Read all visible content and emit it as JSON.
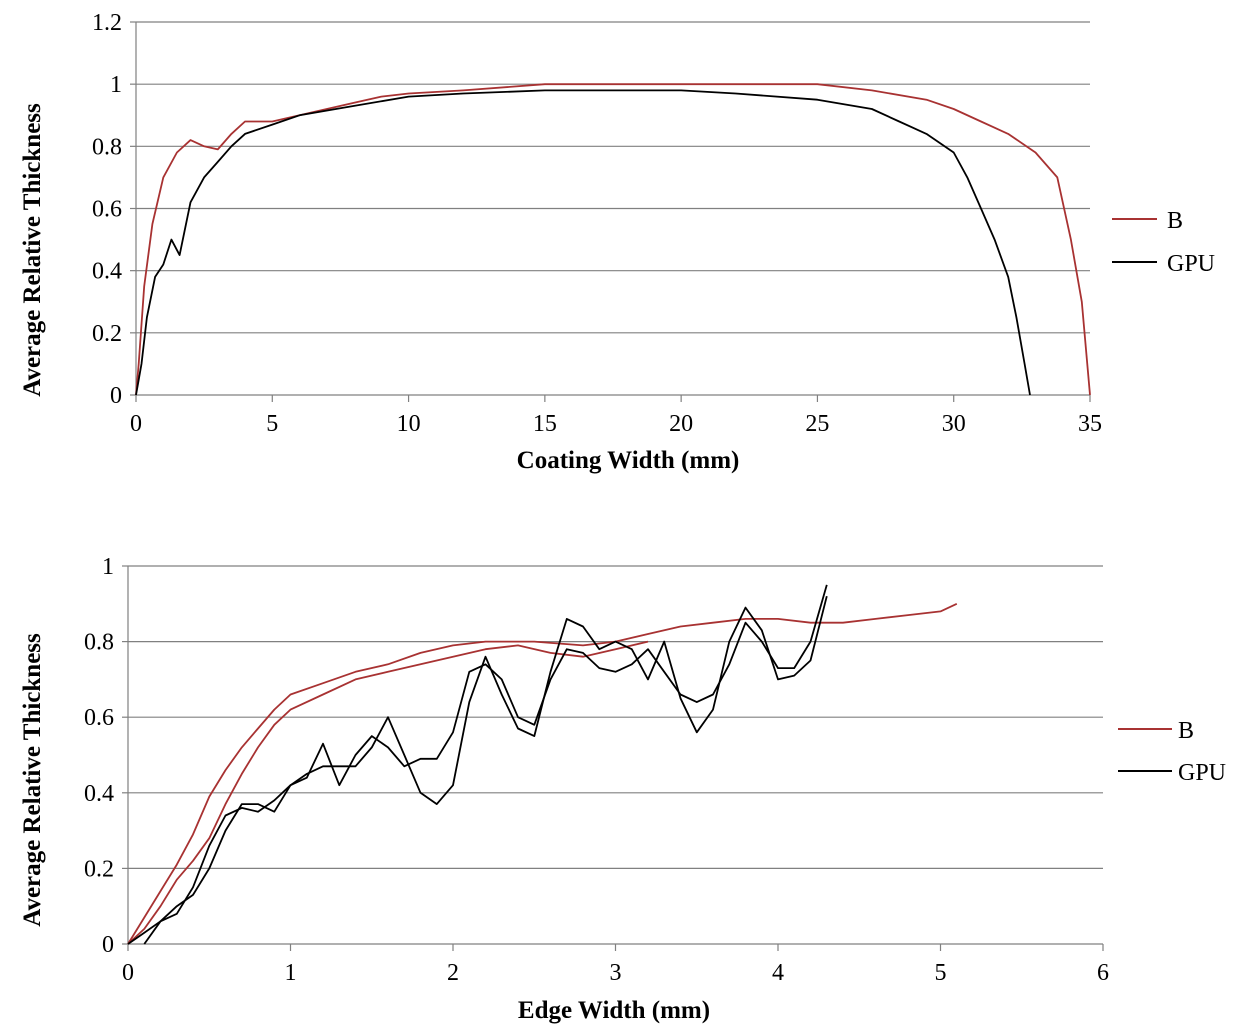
{
  "chart_data": [
    {
      "type": "line",
      "xlabel": "Coating Width (mm)",
      "ylabel": "Average Relative Thickness",
      "xlim": [
        0,
        35
      ],
      "ylim": [
        0,
        1.2
      ],
      "x_ticks": [
        "0",
        "5",
        "10",
        "15",
        "20",
        "25",
        "30",
        "35"
      ],
      "y_ticks": [
        "0",
        "0.2",
        "0.4",
        "0.6",
        "0.8",
        "1",
        "1.2"
      ],
      "grid": "horizontal",
      "legend_position": "right",
      "series": [
        {
          "name": "B",
          "color": "#a83232",
          "points": [
            [
              0,
              0
            ],
            [
              0.1,
              0.1
            ],
            [
              0.3,
              0.35
            ],
            [
              0.6,
              0.55
            ],
            [
              1.0,
              0.7
            ],
            [
              1.5,
              0.78
            ],
            [
              2.0,
              0.82
            ],
            [
              2.5,
              0.8
            ],
            [
              3.0,
              0.79
            ],
            [
              3.5,
              0.84
            ],
            [
              4.0,
              0.88
            ],
            [
              5,
              0.88
            ],
            [
              6,
              0.9
            ],
            [
              7,
              0.92
            ],
            [
              8,
              0.94
            ],
            [
              9,
              0.96
            ],
            [
              10,
              0.97
            ],
            [
              12,
              0.98
            ],
            [
              15,
              1.0
            ],
            [
              18,
              1.0
            ],
            [
              20,
              1.0
            ],
            [
              22,
              1.0
            ],
            [
              25,
              1.0
            ],
            [
              27,
              0.98
            ],
            [
              29,
              0.95
            ],
            [
              30,
              0.92
            ],
            [
              31,
              0.88
            ],
            [
              32,
              0.84
            ],
            [
              33,
              0.78
            ],
            [
              33.8,
              0.7
            ],
            [
              34.3,
              0.5
            ],
            [
              34.7,
              0.3
            ],
            [
              35,
              0.0
            ]
          ]
        },
        {
          "name": "GPU",
          "color": "#000000",
          "points": [
            [
              0,
              0
            ],
            [
              0.2,
              0.1
            ],
            [
              0.4,
              0.25
            ],
            [
              0.7,
              0.38
            ],
            [
              1.0,
              0.42
            ],
            [
              1.3,
              0.5
            ],
            [
              1.6,
              0.45
            ],
            [
              2.0,
              0.62
            ],
            [
              2.5,
              0.7
            ],
            [
              3.0,
              0.75
            ],
            [
              3.5,
              0.8
            ],
            [
              4,
              0.84
            ],
            [
              5,
              0.87
            ],
            [
              6,
              0.9
            ],
            [
              8,
              0.93
            ],
            [
              10,
              0.96
            ],
            [
              12,
              0.97
            ],
            [
              15,
              0.98
            ],
            [
              18,
              0.98
            ],
            [
              20,
              0.98
            ],
            [
              22,
              0.97
            ],
            [
              25,
              0.95
            ],
            [
              27,
              0.92
            ],
            [
              28,
              0.88
            ],
            [
              29,
              0.84
            ],
            [
              30,
              0.78
            ],
            [
              30.5,
              0.7
            ],
            [
              31,
              0.6
            ],
            [
              31.5,
              0.5
            ],
            [
              32,
              0.38
            ],
            [
              32.3,
              0.25
            ],
            [
              32.6,
              0.1
            ],
            [
              32.8,
              0.0
            ]
          ]
        }
      ]
    },
    {
      "type": "line",
      "xlabel": "Edge Width (mm)",
      "ylabel": "Average Relative Thickness",
      "xlim": [
        0,
        6
      ],
      "ylim": [
        0,
        1
      ],
      "x_ticks": [
        "0",
        "1",
        "2",
        "3",
        "4",
        "5",
        "6"
      ],
      "y_ticks": [
        "0",
        "0.2",
        "0.4",
        "0.6",
        "0.8",
        "1"
      ],
      "grid": "horizontal",
      "legend_position": "right",
      "series": [
        {
          "name": "B",
          "color": "#a83232",
          "points": [
            [
              0,
              0
            ],
            [
              0.1,
              0.07
            ],
            [
              0.2,
              0.14
            ],
            [
              0.3,
              0.21
            ],
            [
              0.4,
              0.29
            ],
            [
              0.5,
              0.39
            ],
            [
              0.6,
              0.46
            ],
            [
              0.7,
              0.52
            ],
            [
              0.8,
              0.57
            ],
            [
              0.9,
              0.62
            ],
            [
              1.0,
              0.66
            ],
            [
              1.2,
              0.69
            ],
            [
              1.4,
              0.72
            ],
            [
              1.6,
              0.74
            ],
            [
              1.8,
              0.77
            ],
            [
              2.0,
              0.79
            ],
            [
              2.2,
              0.8
            ],
            [
              2.5,
              0.8
            ],
            [
              2.8,
              0.79
            ],
            [
              3.0,
              0.8
            ],
            [
              3.2,
              0.82
            ],
            [
              3.4,
              0.84
            ],
            [
              3.6,
              0.85
            ],
            [
              3.8,
              0.86
            ],
            [
              4.0,
              0.86
            ],
            [
              4.2,
              0.85
            ],
            [
              4.4,
              0.85
            ],
            [
              4.6,
              0.86
            ],
            [
              4.8,
              0.87
            ],
            [
              5.0,
              0.88
            ],
            [
              5.1,
              0.9
            ]
          ]
        },
        {
          "name": "B",
          "color": "#a83232",
          "points": [
            [
              0,
              0
            ],
            [
              0.1,
              0.04
            ],
            [
              0.2,
              0.1
            ],
            [
              0.3,
              0.17
            ],
            [
              0.4,
              0.22
            ],
            [
              0.5,
              0.28
            ],
            [
              0.6,
              0.37
            ],
            [
              0.7,
              0.45
            ],
            [
              0.8,
              0.52
            ],
            [
              0.9,
              0.58
            ],
            [
              1.0,
              0.62
            ],
            [
              1.2,
              0.66
            ],
            [
              1.4,
              0.7
            ],
            [
              1.6,
              0.72
            ],
            [
              1.8,
              0.74
            ],
            [
              2.0,
              0.76
            ],
            [
              2.2,
              0.78
            ],
            [
              2.4,
              0.79
            ],
            [
              2.6,
              0.77
            ],
            [
              2.8,
              0.76
            ],
            [
              3.0,
              0.78
            ],
            [
              3.2,
              0.8
            ]
          ]
        },
        {
          "name": "GPU",
          "color": "#000000",
          "points": [
            [
              0,
              0
            ],
            [
              0.1,
              0.03
            ],
            [
              0.2,
              0.06
            ],
            [
              0.3,
              0.08
            ],
            [
              0.4,
              0.15
            ],
            [
              0.5,
              0.26
            ],
            [
              0.6,
              0.34
            ],
            [
              0.7,
              0.36
            ],
            [
              0.8,
              0.35
            ],
            [
              0.9,
              0.38
            ],
            [
              1.0,
              0.42
            ],
            [
              1.1,
              0.44
            ],
            [
              1.2,
              0.53
            ],
            [
              1.3,
              0.42
            ],
            [
              1.4,
              0.5
            ],
            [
              1.5,
              0.55
            ],
            [
              1.6,
              0.52
            ],
            [
              1.7,
              0.47
            ],
            [
              1.8,
              0.49
            ],
            [
              1.9,
              0.49
            ],
            [
              2.0,
              0.56
            ],
            [
              2.1,
              0.72
            ],
            [
              2.2,
              0.74
            ],
            [
              2.3,
              0.7
            ],
            [
              2.4,
              0.6
            ],
            [
              2.5,
              0.58
            ],
            [
              2.6,
              0.7
            ],
            [
              2.7,
              0.78
            ],
            [
              2.8,
              0.77
            ],
            [
              2.9,
              0.73
            ],
            [
              3.0,
              0.72
            ],
            [
              3.1,
              0.74
            ],
            [
              3.2,
              0.78
            ],
            [
              3.3,
              0.72
            ],
            [
              3.4,
              0.66
            ],
            [
              3.5,
              0.64
            ],
            [
              3.6,
              0.66
            ],
            [
              3.7,
              0.74
            ],
            [
              3.8,
              0.85
            ],
            [
              3.9,
              0.8
            ],
            [
              4.0,
              0.73
            ],
            [
              4.1,
              0.73
            ],
            [
              4.2,
              0.8
            ],
            [
              4.3,
              0.95
            ]
          ]
        },
        {
          "name": "GPU",
          "color": "#000000",
          "points": [
            [
              0.1,
              0
            ],
            [
              0.2,
              0.06
            ],
            [
              0.3,
              0.1
            ],
            [
              0.4,
              0.13
            ],
            [
              0.5,
              0.2
            ],
            [
              0.6,
              0.3
            ],
            [
              0.7,
              0.37
            ],
            [
              0.8,
              0.37
            ],
            [
              0.9,
              0.35
            ],
            [
              1.0,
              0.42
            ],
            [
              1.1,
              0.45
            ],
            [
              1.2,
              0.47
            ],
            [
              1.3,
              0.47
            ],
            [
              1.4,
              0.47
            ],
            [
              1.5,
              0.52
            ],
            [
              1.6,
              0.6
            ],
            [
              1.7,
              0.5
            ],
            [
              1.8,
              0.4
            ],
            [
              1.9,
              0.37
            ],
            [
              2.0,
              0.42
            ],
            [
              2.1,
              0.64
            ],
            [
              2.2,
              0.76
            ],
            [
              2.3,
              0.66
            ],
            [
              2.4,
              0.57
            ],
            [
              2.5,
              0.55
            ],
            [
              2.6,
              0.72
            ],
            [
              2.7,
              0.86
            ],
            [
              2.8,
              0.84
            ],
            [
              2.9,
              0.78
            ],
            [
              3.0,
              0.8
            ],
            [
              3.1,
              0.78
            ],
            [
              3.2,
              0.7
            ],
            [
              3.3,
              0.8
            ],
            [
              3.4,
              0.65
            ],
            [
              3.5,
              0.56
            ],
            [
              3.6,
              0.62
            ],
            [
              3.7,
              0.8
            ],
            [
              3.8,
              0.89
            ],
            [
              3.9,
              0.83
            ],
            [
              4.0,
              0.7
            ],
            [
              4.1,
              0.71
            ],
            [
              4.2,
              0.75
            ],
            [
              4.3,
              0.92
            ]
          ]
        }
      ]
    }
  ]
}
